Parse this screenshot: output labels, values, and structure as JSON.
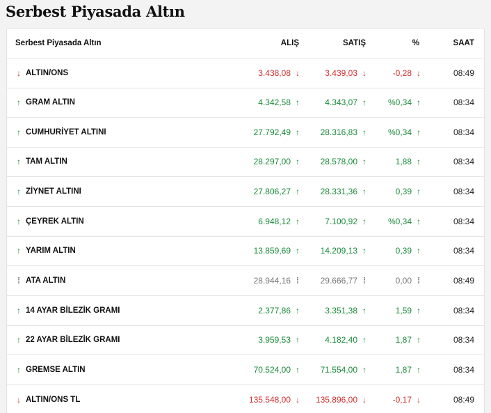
{
  "page_title": "Serbest Piyasada Altın",
  "colors": {
    "up": "#1a8a3a",
    "down": "#d32f2f",
    "flat": "#777777"
  },
  "table": {
    "headers": {
      "name": "Serbest Piyasada Altın",
      "buy": "ALIŞ",
      "sell": "SATIŞ",
      "pct": "%",
      "time": "SAAT"
    },
    "rows": [
      {
        "name": "ALTIN/ONS",
        "dir": "down",
        "arrow": "↓",
        "buy": "3.438,08",
        "buy_icon": "↓",
        "sell": "3.439,03",
        "sell_icon": "↓",
        "pct": "-0,28",
        "pct_icon": "↓",
        "time": "08:49"
      },
      {
        "name": "GRAM ALTIN",
        "dir": "up",
        "arrow": "↑",
        "buy": "4.342,58",
        "buy_icon": "↑",
        "sell": "4.343,07",
        "sell_icon": "↑",
        "pct": "%0,34",
        "pct_icon": "↑",
        "time": "08:34"
      },
      {
        "name": "CUMHURİYET ALTINI",
        "dir": "up",
        "arrow": "↑",
        "buy": "27.792,49",
        "buy_icon": "↑",
        "sell": "28.316,83",
        "sell_icon": "↑",
        "pct": "%0,34",
        "pct_icon": "↑",
        "time": "08:34"
      },
      {
        "name": "TAM ALTIN",
        "dir": "up",
        "arrow": "↑",
        "buy": "28.297,00",
        "buy_icon": "↑",
        "sell": "28.578,00",
        "sell_icon": "↑",
        "pct": "1,88",
        "pct_icon": "↑",
        "time": "08:34"
      },
      {
        "name": "ZİYNET ALTINI",
        "dir": "up",
        "arrow": "↑",
        "buy": "27.806,27",
        "buy_icon": "↑",
        "sell": "28.331,36",
        "sell_icon": "↑",
        "pct": "0,39",
        "pct_icon": "↑",
        "time": "08:34"
      },
      {
        "name": "ÇEYREK ALTIN",
        "dir": "up",
        "arrow": "↑",
        "buy": "6.948,12",
        "buy_icon": "↑",
        "sell": "7.100,92",
        "sell_icon": "↑",
        "pct": "%0,34",
        "pct_icon": "↑",
        "time": "08:34"
      },
      {
        "name": "YARIM ALTIN",
        "dir": "up",
        "arrow": "↑",
        "buy": "13.859,69",
        "buy_icon": "↑",
        "sell": "14.209,13",
        "sell_icon": "↑",
        "pct": "0,39",
        "pct_icon": "↑",
        "time": "08:34"
      },
      {
        "name": "ATA ALTIN",
        "dir": "flat",
        "arrow": "⁞",
        "buy": "28.944,16",
        "buy_icon": "⁞",
        "sell": "29.666,77",
        "sell_icon": "⁞",
        "pct": "0,00",
        "pct_icon": "⁞",
        "time": "08:49"
      },
      {
        "name": "14 AYAR BİLEZİK GRAMI",
        "dir": "up",
        "arrow": "↑",
        "buy": "2.377,86",
        "buy_icon": "↑",
        "sell": "3.351,38",
        "sell_icon": "↑",
        "pct": "1,59",
        "pct_icon": "↑",
        "time": "08:34"
      },
      {
        "name": "22 AYAR BİLEZİK GRAMI",
        "dir": "up",
        "arrow": "↑",
        "buy": "3.959,53",
        "buy_icon": "↑",
        "sell": "4.182,40",
        "sell_icon": "↑",
        "pct": "1,87",
        "pct_icon": "↑",
        "time": "08:34"
      },
      {
        "name": "GREMSE ALTIN",
        "dir": "up",
        "arrow": "↑",
        "buy": "70.524,00",
        "buy_icon": "↑",
        "sell": "71.554,00",
        "sell_icon": "↑",
        "pct": "1,87",
        "pct_icon": "↑",
        "time": "08:34"
      },
      {
        "name": "ALTIN/ONS TL",
        "dir": "down",
        "arrow": "↓",
        "buy": "135.548,00",
        "buy_icon": "↓",
        "sell": "135.896,00",
        "sell_icon": "↓",
        "pct": "-0,17",
        "pct_icon": "↓",
        "time": "08:49"
      }
    ]
  }
}
